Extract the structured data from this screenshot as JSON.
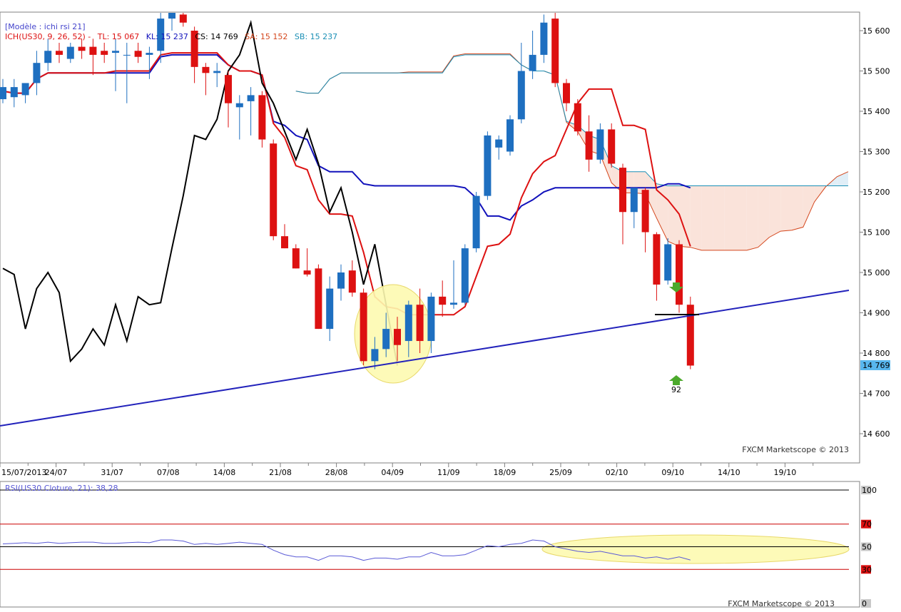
{
  "header": {
    "model_label": "[Modèle : ichi rsi 21]",
    "ich_label": "ICH(US30, 9, 26, 52) -",
    "tl_label": "TL: 15 067",
    "kl_label": "KL: 15 237",
    "cs_label": "CS: 14 769",
    "sa_label": "SA: 15 152",
    "sb_label": "SB: 15 237"
  },
  "colors": {
    "bull": "#1e6fc0",
    "bear": "#dd1111",
    "tenkan": "#dd1111",
    "kijun": "#1111bb",
    "chikou": "#000000",
    "span_a": "#d4461c",
    "span_b": "#1a8fb5",
    "cloud_bull": "#e0eef7",
    "cloud_bear": "#fae3da",
    "trendline": "#2222bb",
    "highlight": "#fdfab0",
    "rsi": "#5a5ad6",
    "price_tag": "#58b6ee"
  },
  "price_axis": {
    "ticks": [
      "15 600",
      "15 500",
      "15 400",
      "15 300",
      "15 200",
      "15 100",
      "15 000",
      "14 900",
      "14 800",
      "14 700",
      "14 600"
    ],
    "current_price_label": "14 769"
  },
  "date_axis": {
    "labels": [
      "15/07/2013",
      "24/07",
      "31/07",
      "07/08",
      "14/08",
      "21/08",
      "28/08",
      "04/09",
      "11/09",
      "18/09",
      "25/09",
      "02/10",
      "09/10",
      "14/10",
      "19/10"
    ]
  },
  "annotations": {
    "signal_count": "92"
  },
  "watermark": {
    "main": "FXCM Marketscope © 2013",
    "rsi": "FXCM Marketscope © 2013"
  },
  "rsi": {
    "label": "RSI(US30.Cloture, 21): 38,28",
    "levels": [
      "100",
      "70",
      "50",
      "30",
      "0"
    ]
  },
  "chart_data": [
    {
      "type": "candlestick",
      "title": "",
      "ylim": [
        14550,
        15630
      ],
      "candles": [
        {
          "x": "2013-07-12",
          "o": 15430,
          "h": 15480,
          "l": 15420,
          "c": 15460
        },
        {
          "x": "2013-07-15",
          "o": 15435,
          "h": 15480,
          "l": 15410,
          "c": 15460
        },
        {
          "x": "2013-07-16",
          "o": 15440,
          "h": 15460,
          "l": 15420,
          "c": 15470
        },
        {
          "x": "2013-07-17",
          "o": 15470,
          "h": 15550,
          "l": 15440,
          "c": 15520
        },
        {
          "x": "2013-07-18",
          "o": 15520,
          "h": 15580,
          "l": 15500,
          "c": 15550
        },
        {
          "x": "2013-07-19",
          "o": 15550,
          "h": 15570,
          "l": 15520,
          "c": 15540
        },
        {
          "x": "2013-07-22",
          "o": 15530,
          "h": 15570,
          "l": 15520,
          "c": 15560
        },
        {
          "x": "2013-07-23",
          "o": 15560,
          "h": 15580,
          "l": 15530,
          "c": 15550
        },
        {
          "x": "2013-07-24",
          "o": 15560,
          "h": 15580,
          "l": 15490,
          "c": 15540
        },
        {
          "x": "2013-07-25",
          "o": 15550,
          "h": 15570,
          "l": 15520,
          "c": 15540
        },
        {
          "x": "2013-07-26",
          "o": 15545,
          "h": 15580,
          "l": 15450,
          "c": 15550
        },
        {
          "x": "2013-07-29",
          "o": 15540,
          "h": 15570,
          "l": 15420,
          "c": 15540
        },
        {
          "x": "2013-07-30",
          "o": 15550,
          "h": 15570,
          "l": 15520,
          "c": 15535
        },
        {
          "x": "2013-07-31",
          "o": 15540,
          "h": 15560,
          "l": 15480,
          "c": 15545
        },
        {
          "x": "2013-08-01",
          "o": 15550,
          "h": 15660,
          "l": 15520,
          "c": 15630
        },
        {
          "x": "2013-08-02",
          "o": 15630,
          "h": 15670,
          "l": 15600,
          "c": 15660
        },
        {
          "x": "2013-08-05",
          "o": 15640,
          "h": 15660,
          "l": 15610,
          "c": 15620
        },
        {
          "x": "2013-08-06",
          "o": 15600,
          "h": 15610,
          "l": 15470,
          "c": 15510
        },
        {
          "x": "2013-08-07",
          "o": 15510,
          "h": 15520,
          "l": 15440,
          "c": 15495
        },
        {
          "x": "2013-08-08",
          "o": 15495,
          "h": 15520,
          "l": 15460,
          "c": 15500
        },
        {
          "x": "2013-08-09",
          "o": 15490,
          "h": 15500,
          "l": 15360,
          "c": 15420
        },
        {
          "x": "2013-08-12",
          "o": 15410,
          "h": 15440,
          "l": 15330,
          "c": 15420
        },
        {
          "x": "2013-08-13",
          "o": 15425,
          "h": 15460,
          "l": 15340,
          "c": 15440
        },
        {
          "x": "2013-08-14",
          "o": 15440,
          "h": 15450,
          "l": 15310,
          "c": 15330
        },
        {
          "x": "2013-08-15",
          "o": 15320,
          "h": 15330,
          "l": 15080,
          "c": 15090
        },
        {
          "x": "2013-08-16",
          "o": 15090,
          "h": 15120,
          "l": 15060,
          "c": 15060
        },
        {
          "x": "2013-08-19",
          "o": 15060,
          "h": 15070,
          "l": 15010,
          "c": 15010
        },
        {
          "x": "2013-08-20",
          "o": 15005,
          "h": 15060,
          "l": 14990,
          "c": 14995
        },
        {
          "x": "2013-08-21",
          "o": 15010,
          "h": 15020,
          "l": 14860,
          "c": 14860
        },
        {
          "x": "2013-08-22",
          "o": 14860,
          "h": 14990,
          "l": 14830,
          "c": 14960
        },
        {
          "x": "2013-08-23",
          "o": 14960,
          "h": 15020,
          "l": 14930,
          "c": 15000
        },
        {
          "x": "2013-08-26",
          "o": 15005,
          "h": 15030,
          "l": 14940,
          "c": 14950
        },
        {
          "x": "2013-08-27",
          "o": 14950,
          "h": 14960,
          "l": 14770,
          "c": 14780
        },
        {
          "x": "2013-08-28",
          "o": 14780,
          "h": 14840,
          "l": 14760,
          "c": 14810
        },
        {
          "x": "2013-08-29",
          "o": 14810,
          "h": 14900,
          "l": 14790,
          "c": 14860
        },
        {
          "x": "2013-08-30",
          "o": 14860,
          "h": 14890,
          "l": 14780,
          "c": 14820
        },
        {
          "x": "2013-09-03",
          "o": 14830,
          "h": 14930,
          "l": 14790,
          "c": 14920
        },
        {
          "x": "2013-09-04",
          "o": 14920,
          "h": 14960,
          "l": 14800,
          "c": 14830
        },
        {
          "x": "2013-09-05",
          "o": 14830,
          "h": 14950,
          "l": 14800,
          "c": 14940
        },
        {
          "x": "2013-09-06",
          "o": 14940,
          "h": 14980,
          "l": 14890,
          "c": 14920
        },
        {
          "x": "2013-09-09",
          "o": 14920,
          "h": 15030,
          "l": 14910,
          "c": 14925
        },
        {
          "x": "2013-09-10",
          "o": 14925,
          "h": 15070,
          "l": 14920,
          "c": 15060
        },
        {
          "x": "2013-09-11",
          "o": 15060,
          "h": 15200,
          "l": 15050,
          "c": 15190
        },
        {
          "x": "2013-09-12",
          "o": 15190,
          "h": 15350,
          "l": 15180,
          "c": 15340
        },
        {
          "x": "2013-09-13",
          "o": 15310,
          "h": 15340,
          "l": 15280,
          "c": 15330
        },
        {
          "x": "2013-09-16",
          "o": 15300,
          "h": 15390,
          "l": 15290,
          "c": 15380
        },
        {
          "x": "2013-09-17",
          "o": 15380,
          "h": 15570,
          "l": 15370,
          "c": 15500
        },
        {
          "x": "2013-09-18",
          "o": 15500,
          "h": 15600,
          "l": 15480,
          "c": 15540
        },
        {
          "x": "2013-09-19",
          "o": 15540,
          "h": 15640,
          "l": 15520,
          "c": 15620
        },
        {
          "x": "2013-09-20",
          "o": 15630,
          "h": 15660,
          "l": 15460,
          "c": 15470
        },
        {
          "x": "2013-09-23",
          "o": 15470,
          "h": 15480,
          "l": 15400,
          "c": 15420
        },
        {
          "x": "2013-09-24",
          "o": 15420,
          "h": 15430,
          "l": 15340,
          "c": 15350
        },
        {
          "x": "2013-09-25",
          "o": 15350,
          "h": 15390,
          "l": 15250,
          "c": 15280
        },
        {
          "x": "2013-09-26",
          "o": 15280,
          "h": 15370,
          "l": 15270,
          "c": 15355
        },
        {
          "x": "2013-09-27",
          "o": 15355,
          "h": 15370,
          "l": 15260,
          "c": 15270
        },
        {
          "x": "2013-09-30",
          "o": 15260,
          "h": 15270,
          "l": 15070,
          "c": 15150
        },
        {
          "x": "2013-10-01",
          "o": 15150,
          "h": 15210,
          "l": 15110,
          "c": 15210
        },
        {
          "x": "2013-10-02",
          "o": 15205,
          "h": 15210,
          "l": 15050,
          "c": 15100
        },
        {
          "x": "2013-10-03",
          "o": 15095,
          "h": 15100,
          "l": 14930,
          "c": 14970
        },
        {
          "x": "2013-10-04",
          "o": 14980,
          "h": 15085,
          "l": 14970,
          "c": 15070
        },
        {
          "x": "2013-10-07",
          "o": 15070,
          "h": 15080,
          "l": 14900,
          "c": 14920
        },
        {
          "x": "2013-10-08",
          "o": 14920,
          "h": 14940,
          "l": 14760,
          "c": 14769
        }
      ]
    },
    {
      "type": "line",
      "title": "",
      "ylim": [
        0,
        100
      ],
      "series": [
        {
          "name": "RSI(US30.Cloture, 21)",
          "values": [
            52.5,
            53,
            53.5,
            53,
            54,
            53,
            53.5,
            54,
            54,
            53,
            53,
            53.5,
            54,
            53.5,
            56,
            56,
            55,
            52,
            53,
            52,
            53,
            54,
            53,
            52,
            47,
            43,
            41,
            41,
            38,
            42,
            42,
            41,
            38,
            40,
            40,
            39,
            41,
            41,
            45,
            42,
            42,
            43,
            47,
            51,
            50,
            52,
            53,
            56,
            55,
            50,
            48,
            46,
            45,
            46,
            44,
            42,
            42,
            40,
            41,
            39,
            41,
            38.28
          ]
        }
      ],
      "levels": [
        100,
        70,
        50,
        30,
        0
      ]
    }
  ]
}
